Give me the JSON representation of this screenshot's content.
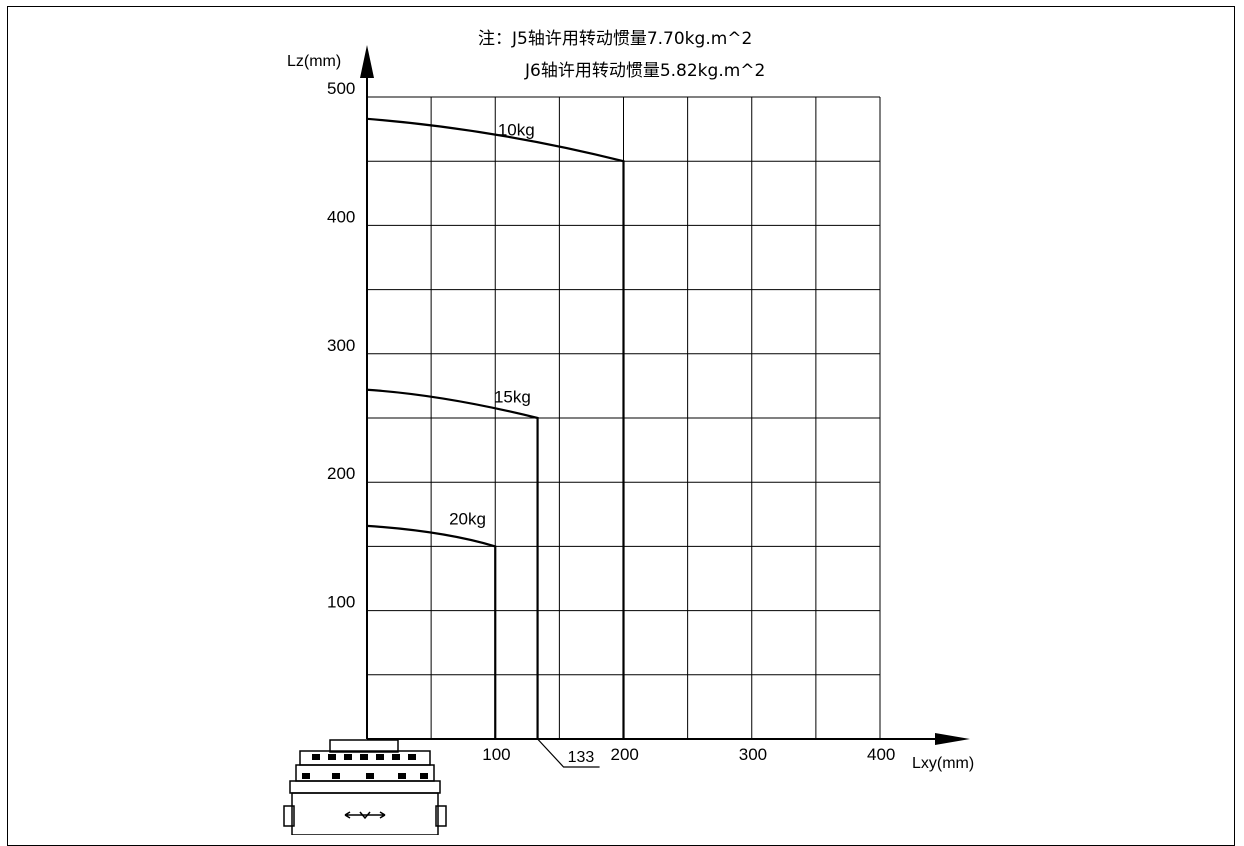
{
  "notes": {
    "line1": "注：J5轴许用转动惯量7.70kg.m^2",
    "line2": "J6轴许用转动惯量5.82kg.m^2"
  },
  "chart_data": {
    "type": "line",
    "xlabel": "Lxy(mm)",
    "ylabel": "Lz(mm)",
    "xlim": [
      0,
      400
    ],
    "ylim": [
      0,
      500
    ],
    "grid": true,
    "x_tick_labels": [
      "100",
      "200",
      "300",
      "400"
    ],
    "x_tick_values": [
      100,
      200,
      300,
      400
    ],
    "y_tick_labels": [
      "100",
      "200",
      "300",
      "400",
      "500"
    ],
    "y_tick_values": [
      100,
      200,
      300,
      400,
      500
    ],
    "annotation": {
      "text": "133",
      "x": 133,
      "y": 0
    },
    "series": [
      {
        "name": "10kg",
        "label_at": [
          102,
          470
        ],
        "points": [
          [
            0,
            483
          ],
          [
            100,
            475
          ],
          [
            200,
            450
          ],
          [
            200,
            0
          ]
        ]
      },
      {
        "name": "15kg",
        "label_at": [
          99,
          262
        ],
        "points": [
          [
            0,
            272
          ],
          [
            60,
            268
          ],
          [
            133,
            250
          ],
          [
            133,
            0
          ]
        ]
      },
      {
        "name": "20kg",
        "label_at": [
          64,
          167
        ],
        "points": [
          [
            0,
            166
          ],
          [
            60,
            162
          ],
          [
            100,
            150
          ],
          [
            100,
            0
          ]
        ]
      }
    ]
  }
}
